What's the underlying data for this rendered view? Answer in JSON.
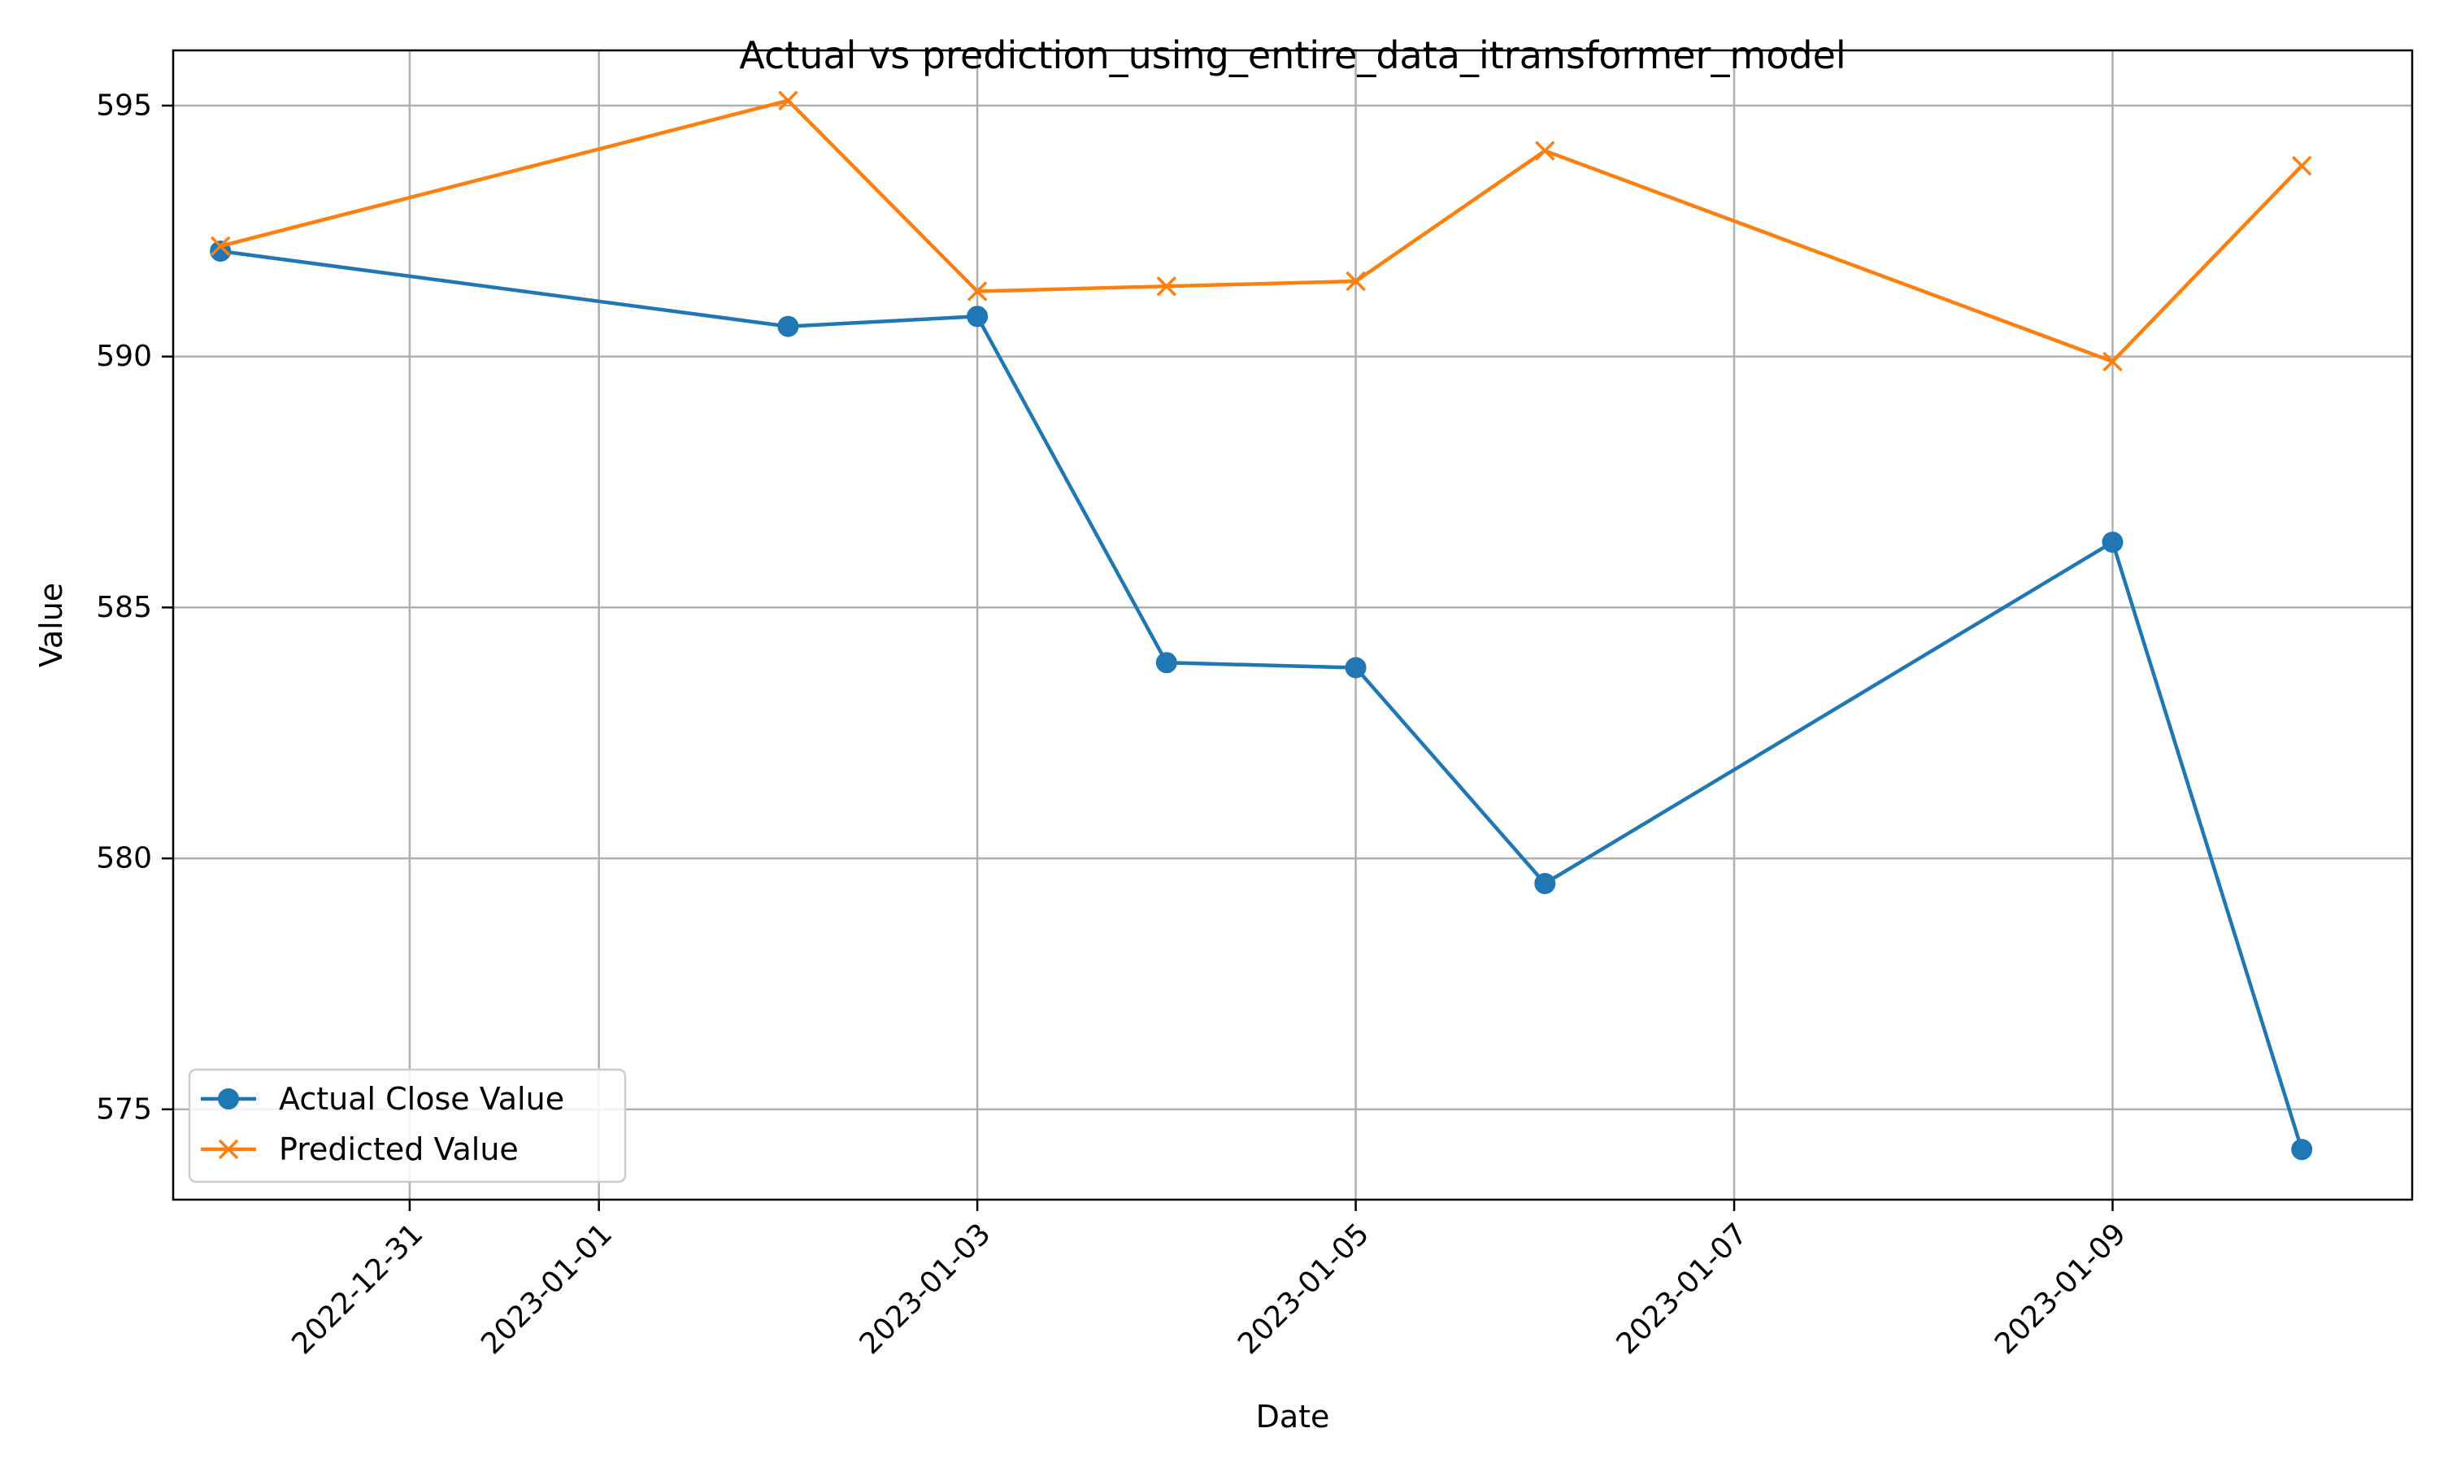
{
  "chart_data": {
    "type": "line",
    "title": "Actual vs prediction_using_entire_data_itransformer_model",
    "xlabel": "Date",
    "ylabel": "Value",
    "x_type": "date",
    "xlim": [
      "2022-12-29T18:00",
      "2023-01-10T14:00"
    ],
    "ylim": [
      573.2,
      596.1
    ],
    "x_ticks": [
      "2022-12-31",
      "2023-01-01",
      "2023-01-03",
      "2023-01-05",
      "2023-01-07",
      "2023-01-09"
    ],
    "y_ticks": [
      575,
      580,
      585,
      590,
      595
    ],
    "grid": true,
    "legend_position": "lower-left",
    "x": [
      "2022-12-30",
      "2023-01-02",
      "2023-01-03",
      "2023-01-04",
      "2023-01-05",
      "2023-01-06",
      "2023-01-09",
      "2023-01-10"
    ],
    "series": [
      {
        "name": "Actual Close Value",
        "color": "#1f77b4",
        "marker": "circle",
        "values": [
          592.1,
          590.6,
          590.8,
          583.9,
          583.8,
          579.5,
          586.3,
          574.2
        ]
      },
      {
        "name": "Predicted Value",
        "color": "#ff7f0e",
        "marker": "x",
        "values": [
          592.2,
          595.1,
          591.3,
          591.4,
          591.5,
          594.1,
          589.9,
          593.8
        ]
      }
    ]
  }
}
